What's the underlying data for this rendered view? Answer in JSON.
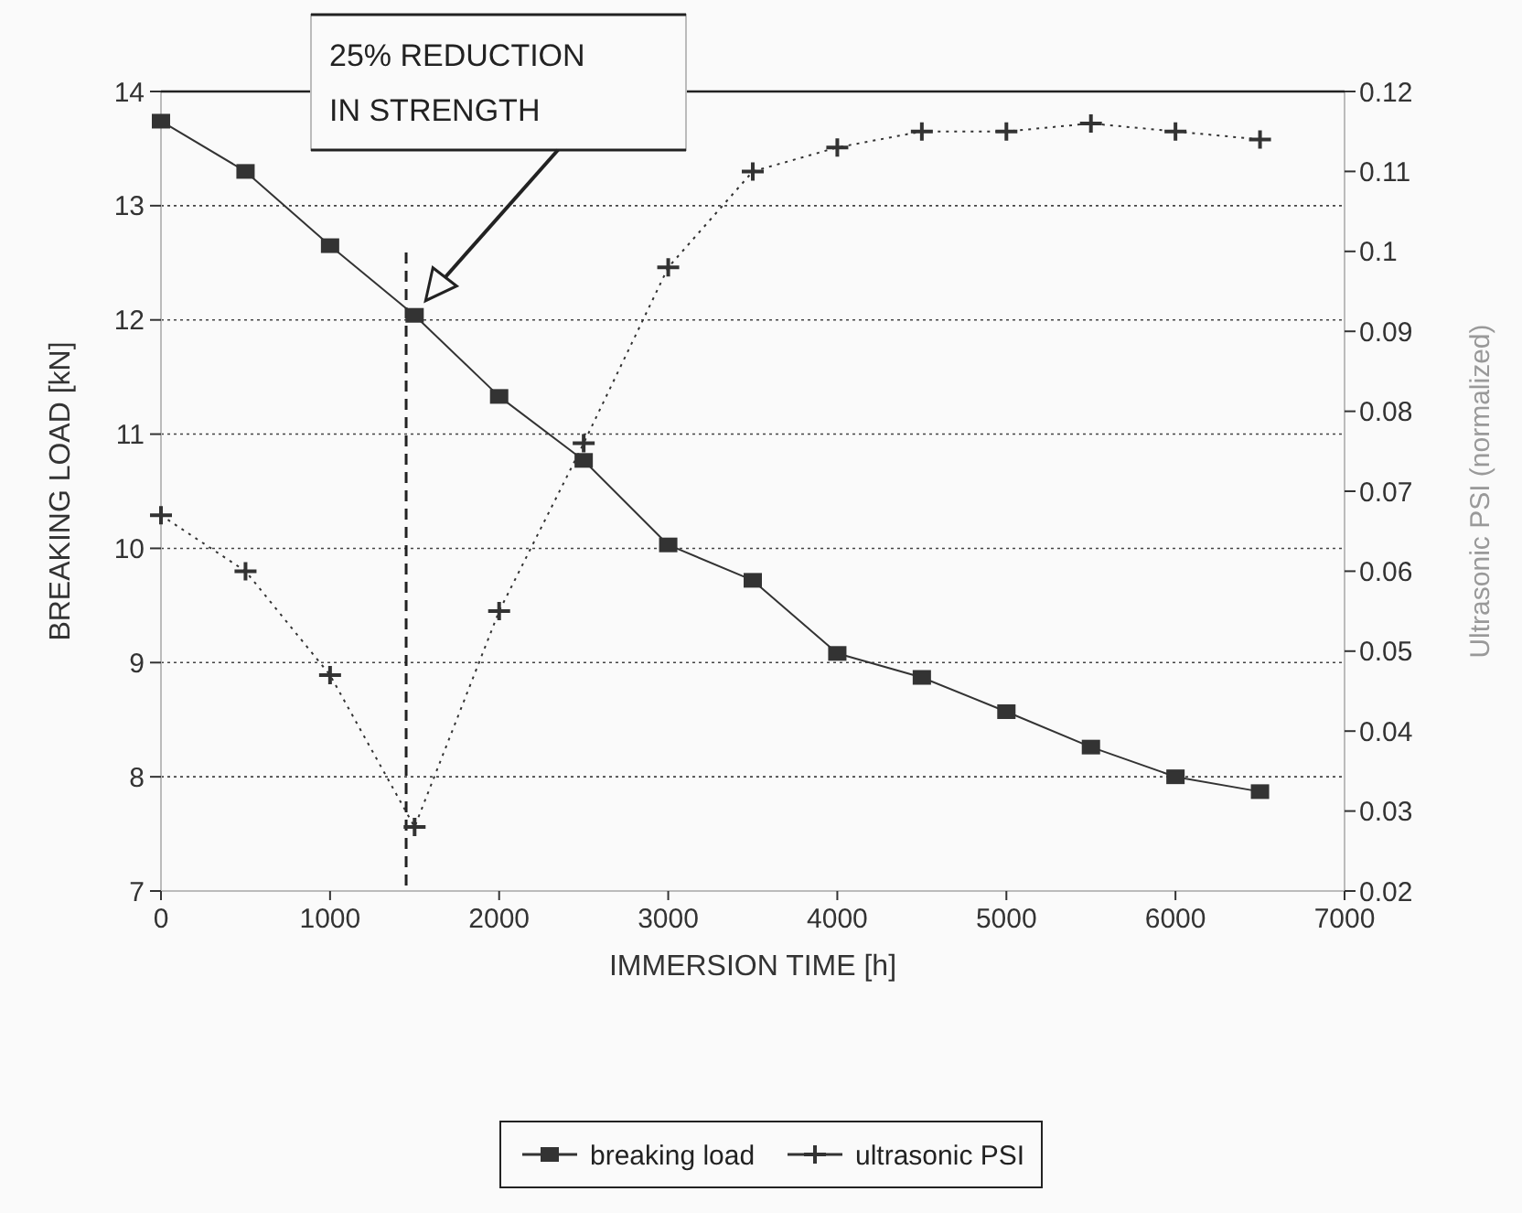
{
  "chart_data": {
    "type": "line",
    "xlabel": "IMMERSION TIME [h]",
    "ylabel": "BREAKING LOAD [kN]",
    "y2label": "Ultrasonic PSI (normalized)",
    "x": [
      0,
      500,
      1000,
      1500,
      2000,
      2500,
      3000,
      3500,
      4000,
      4500,
      5000,
      5500,
      6000,
      6500
    ],
    "series": [
      {
        "name": "breaking load",
        "color": "#333333",
        "marker": "square",
        "line_style": "solid",
        "values": [
          13.74,
          13.3,
          12.65,
          12.04,
          11.33,
          10.77,
          10.03,
          9.72,
          9.08,
          8.87,
          8.57,
          8.26,
          8.0,
          7.87
        ]
      },
      {
        "name": "ultrasonic PSI",
        "color": "#333333",
        "marker": "cross",
        "line_style": "dotted",
        "axis": "y2",
        "values": [
          0.067,
          0.06,
          0.047,
          0.028,
          0.055,
          0.076,
          0.098,
          0.11,
          0.113,
          0.115,
          0.115,
          0.116,
          0.115,
          0.114
        ]
      }
    ],
    "xlim": [
      0,
      7000
    ],
    "xticks": [
      0,
      1000,
      2000,
      3000,
      4000,
      5000,
      6000,
      7000
    ],
    "ylim": [
      7,
      14
    ],
    "yticks": [
      7,
      8,
      9,
      10,
      11,
      12,
      13,
      14
    ],
    "y2lim": [
      0.02,
      0.12
    ],
    "y2ticks": [
      0.02,
      0.03,
      0.04,
      0.05,
      0.06,
      0.07,
      0.08,
      0.09,
      0.1,
      0.11,
      0.12
    ],
    "ref_lines": [
      {
        "axis": "x",
        "value": 1450,
        "line_style": "dashed",
        "color": "#222222"
      }
    ],
    "annotations": [
      "25% REDUCTION IN STRENGTH"
    ],
    "grid": "y",
    "legend": "bottom"
  }
}
